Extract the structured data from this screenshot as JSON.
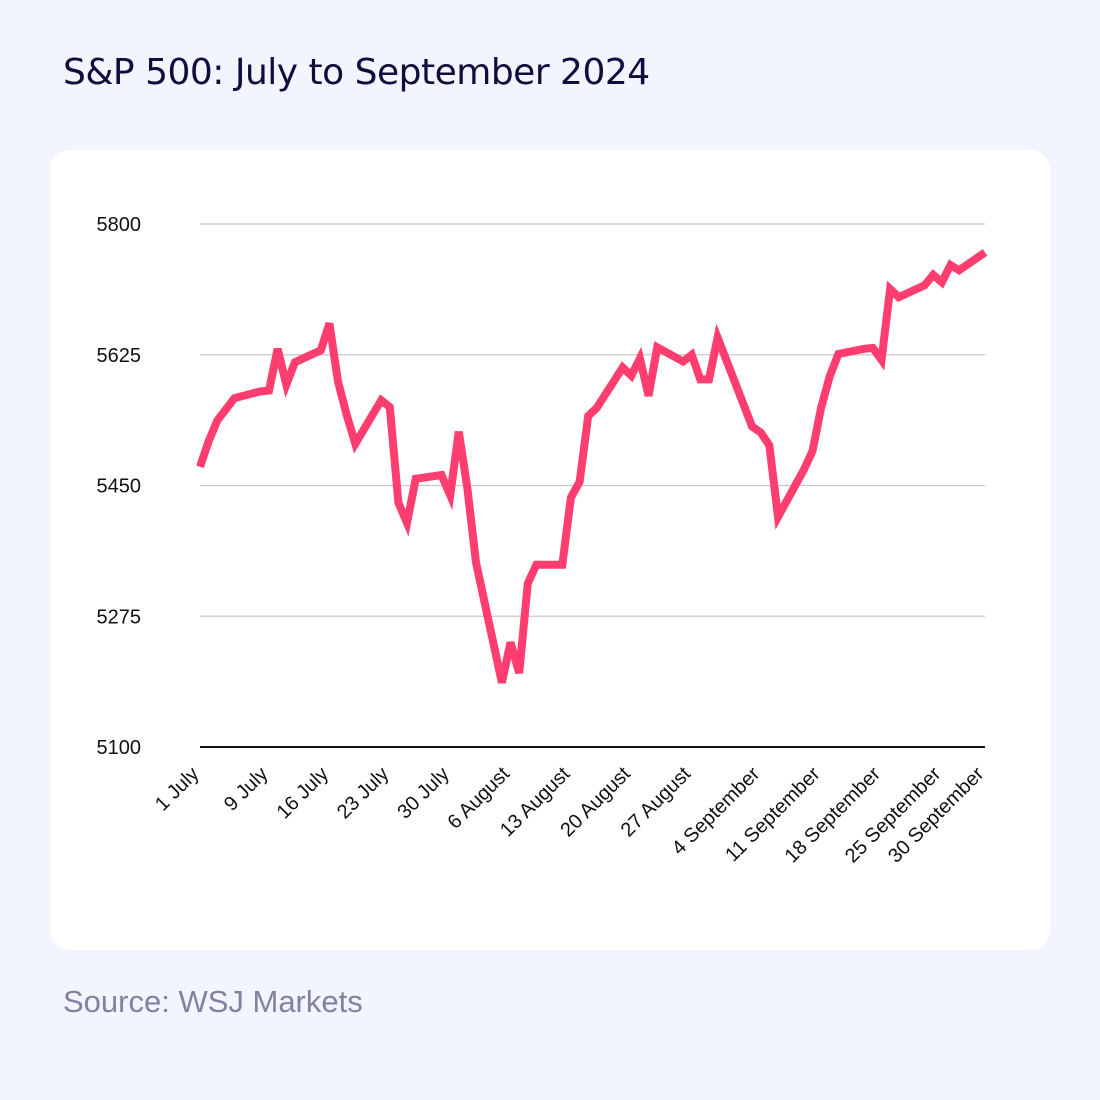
{
  "title": "S&P 500: July to September 2024",
  "source": "Source: WSJ Markets",
  "colors": {
    "background": "#f2f5fd",
    "card": "#ffffff",
    "line": "#ff3d6e",
    "grid": "#c8c8c8",
    "axis": "#111111",
    "title": "#0d0e3d",
    "source": "#7e849f"
  },
  "chart_data": {
    "type": "line",
    "title": "S&P 500: July to September 2024",
    "xlabel": "",
    "ylabel": "",
    "ylim": [
      5100,
      5800
    ],
    "yticks": [
      5100,
      5275,
      5450,
      5625,
      5800
    ],
    "grid": true,
    "legend": "none",
    "xticks": [
      {
        "date": "2024-07-01",
        "label": "1 July"
      },
      {
        "date": "2024-07-09",
        "label": "9 July"
      },
      {
        "date": "2024-07-16",
        "label": "16 July"
      },
      {
        "date": "2024-07-23",
        "label": "23 July"
      },
      {
        "date": "2024-07-30",
        "label": "30 July"
      },
      {
        "date": "2024-08-06",
        "label": "6 August"
      },
      {
        "date": "2024-08-13",
        "label": "13 August"
      },
      {
        "date": "2024-08-20",
        "label": "20 August"
      },
      {
        "date": "2024-08-27",
        "label": "27 August"
      },
      {
        "date": "2024-09-04",
        "label": "4 September"
      },
      {
        "date": "2024-09-11",
        "label": "11 September"
      },
      {
        "date": "2024-09-18",
        "label": "18 September"
      },
      {
        "date": "2024-09-25",
        "label": "25 September"
      },
      {
        "date": "2024-09-30",
        "label": "30 September"
      }
    ],
    "series": [
      {
        "x": [
          "2024-07-01",
          "2024-07-02",
          "2024-07-03",
          "2024-07-05",
          "2024-07-08",
          "2024-07-09",
          "2024-07-10",
          "2024-07-11",
          "2024-07-12",
          "2024-07-15",
          "2024-07-16",
          "2024-07-17",
          "2024-07-18",
          "2024-07-19",
          "2024-07-22",
          "2024-07-23",
          "2024-07-24",
          "2024-07-25",
          "2024-07-26",
          "2024-07-29",
          "2024-07-30",
          "2024-07-31",
          "2024-08-01",
          "2024-08-02",
          "2024-08-05",
          "2024-08-06",
          "2024-08-07",
          "2024-08-08",
          "2024-08-09",
          "2024-08-12",
          "2024-08-13",
          "2024-08-14",
          "2024-08-15",
          "2024-08-16",
          "2024-08-19",
          "2024-08-20",
          "2024-08-21",
          "2024-08-22",
          "2024-08-23",
          "2024-08-26",
          "2024-08-27",
          "2024-08-28",
          "2024-08-29",
          "2024-08-30",
          "2024-09-03",
          "2024-09-04",
          "2024-09-05",
          "2024-09-06",
          "2024-09-09",
          "2024-09-10",
          "2024-09-11",
          "2024-09-12",
          "2024-09-13",
          "2024-09-16",
          "2024-09-17",
          "2024-09-18",
          "2024-09-19",
          "2024-09-20",
          "2024-09-23",
          "2024-09-24",
          "2024-09-25",
          "2024-09-26",
          "2024-09-27",
          "2024-09-30"
        ],
        "values": [
          5475,
          5509,
          5537,
          5567,
          5576,
          5577,
          5633,
          5585,
          5615,
          5631,
          5667,
          5589,
          5545,
          5506,
          5564,
          5555,
          5427,
          5400,
          5459,
          5464,
          5437,
          5522,
          5446,
          5347,
          5186,
          5240,
          5199,
          5319,
          5344,
          5344,
          5434,
          5455,
          5543,
          5554,
          5608,
          5597,
          5620,
          5570,
          5635,
          5616,
          5625,
          5592,
          5592,
          5648,
          5529,
          5521,
          5504,
          5408,
          5471,
          5496,
          5554,
          5596,
          5626,
          5633,
          5634,
          5618,
          5713,
          5702,
          5718,
          5732,
          5722,
          5745,
          5738,
          5762
        ]
      }
    ]
  }
}
